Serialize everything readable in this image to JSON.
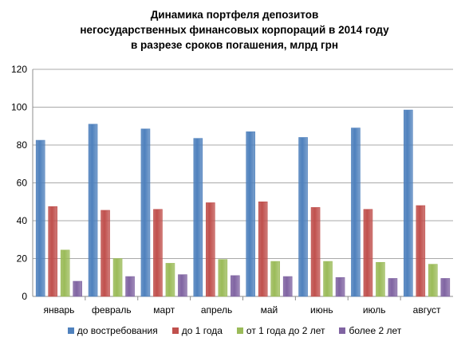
{
  "chart_data": {
    "type": "bar",
    "title_lines": [
      "Динамика портфеля депозитов",
      "негосударственных финансовых корпораций в 2014 году",
      "в разрезе сроков погашения, млрд грн"
    ],
    "categories": [
      "январь",
      "февраль",
      "март",
      "апрель",
      "май",
      "июнь",
      "июль",
      "август"
    ],
    "series": [
      {
        "name": "до востребования",
        "color": "#4f81bd",
        "values": [
          82.5,
          91,
          88.5,
          83.5,
          87,
          84,
          89,
          98.5
        ]
      },
      {
        "name": "до 1 года",
        "color": "#c0504d",
        "values": [
          47.5,
          45.5,
          46,
          49.5,
          50,
          47,
          46,
          48
        ]
      },
      {
        "name": "от 1 года до 2 лет",
        "color": "#9bbb59",
        "values": [
          24.5,
          20,
          17.5,
          19.5,
          18.5,
          18.5,
          18,
          17
        ]
      },
      {
        "name": "более 2 лет",
        "color": "#8064a2",
        "values": [
          8,
          10.5,
          11.5,
          11,
          10.5,
          10,
          9.5,
          9.5
        ]
      }
    ],
    "ylim": [
      0,
      120
    ],
    "yticks": [
      0,
      20,
      40,
      60,
      80,
      100,
      120
    ],
    "grid": true,
    "legend_position": "bottom"
  }
}
